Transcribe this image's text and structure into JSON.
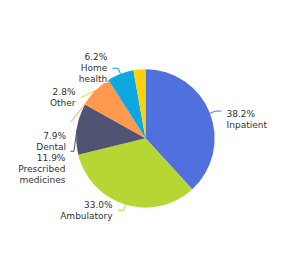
{
  "chart_data": {
    "type": "pie",
    "categories": [
      "Inpatient",
      "Ambulatory",
      "Prescribed\nmedicines",
      "Dental",
      "Home\nhealth",
      "Other"
    ],
    "values": [
      38.2,
      33.0,
      11.9,
      7.9,
      6.2,
      2.8
    ],
    "value_labels": [
      "38.2%",
      "33.0%",
      "11.9%",
      "7.9%",
      "6.2%",
      "2.8%"
    ],
    "data_labels": true,
    "legend": false
  }
}
